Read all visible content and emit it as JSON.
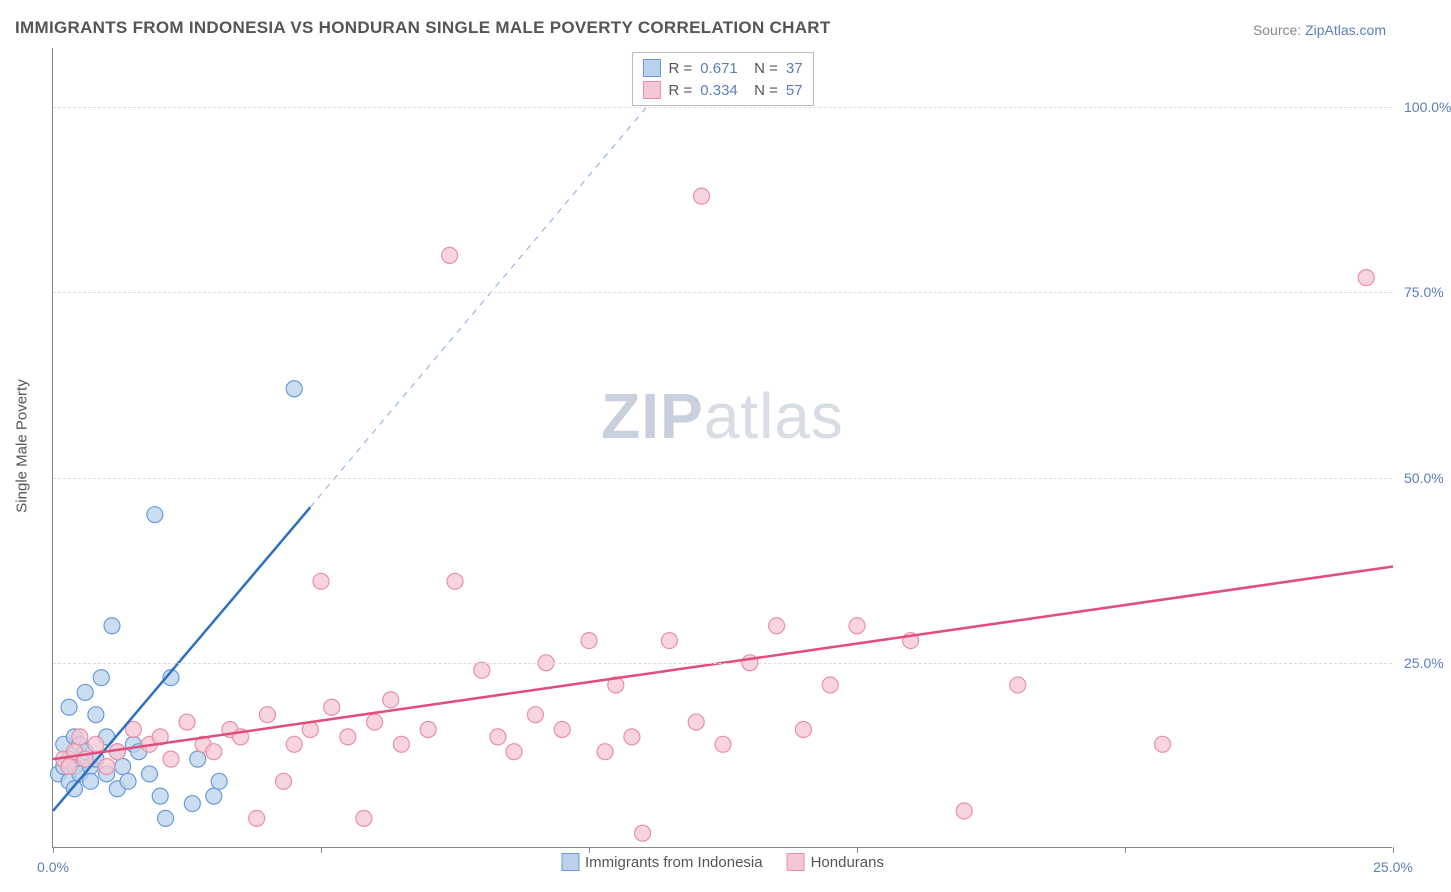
{
  "title": "IMMIGRANTS FROM INDONESIA VS HONDURAN SINGLE MALE POVERTY CORRELATION CHART",
  "source_label": "Source:",
  "source_name": "ZipAtlas.com",
  "watermark_a": "ZIP",
  "watermark_b": "atlas",
  "chart": {
    "type": "scatter",
    "ylabel": "Single Male Poverty",
    "xlim": [
      0,
      25
    ],
    "ylim": [
      0,
      108
    ],
    "xtick_positions": [
      0,
      5,
      10,
      15,
      20,
      25
    ],
    "xtick_labels": [
      "0.0%",
      "",
      "",
      "",
      "",
      "25.0%"
    ],
    "ytick_positions": [
      25,
      50,
      75,
      100
    ],
    "ytick_labels": [
      "25.0%",
      "50.0%",
      "75.0%",
      "100.0%"
    ],
    "grid_color": "#dddddd",
    "background_color": "#ffffff",
    "series": [
      {
        "name": "Immigrants from Indonesia",
        "color_fill": "#b9d1ec",
        "color_stroke": "#6a9bd8",
        "line_color": "#2f6fc0",
        "marker_radius": 8,
        "marker_opacity": 0.75,
        "R": "0.671",
        "N": "37",
        "trend_solid": {
          "x1": 0,
          "y1": 5,
          "x2": 4.8,
          "y2": 46
        },
        "trend_dashed": {
          "x1": 4.8,
          "y1": 46,
          "x2": 12.0,
          "y2": 108
        },
        "points": [
          [
            0.1,
            10
          ],
          [
            0.2,
            11
          ],
          [
            0.2,
            14
          ],
          [
            0.3,
            9
          ],
          [
            0.3,
            12
          ],
          [
            0.3,
            19
          ],
          [
            0.4,
            8
          ],
          [
            0.4,
            11
          ],
          [
            0.4,
            15
          ],
          [
            0.5,
            10
          ],
          [
            0.5,
            14
          ],
          [
            0.6,
            21
          ],
          [
            0.6,
            13
          ],
          [
            0.7,
            11
          ],
          [
            0.7,
            9
          ],
          [
            0.8,
            18
          ],
          [
            0.8,
            12
          ],
          [
            0.9,
            23
          ],
          [
            1.0,
            10
          ],
          [
            1.0,
            15
          ],
          [
            1.1,
            30
          ],
          [
            1.2,
            8
          ],
          [
            1.2,
            13
          ],
          [
            1.3,
            11
          ],
          [
            1.4,
            9
          ],
          [
            1.5,
            14
          ],
          [
            1.6,
            13
          ],
          [
            1.8,
            10
          ],
          [
            1.9,
            45
          ],
          [
            2.0,
            7
          ],
          [
            2.1,
            4
          ],
          [
            2.2,
            23
          ],
          [
            2.6,
            6
          ],
          [
            2.7,
            12
          ],
          [
            3.0,
            7
          ],
          [
            3.1,
            9
          ],
          [
            4.5,
            62
          ]
        ]
      },
      {
        "name": "Hondurans",
        "color_fill": "#f5c6d3",
        "color_stroke": "#e98fab",
        "line_color": "#e24d7c",
        "marker_radius": 8,
        "marker_opacity": 0.75,
        "R": "0.334",
        "N": "57",
        "trend_solid": {
          "x1": 0,
          "y1": 12,
          "x2": 25,
          "y2": 38
        },
        "points": [
          [
            0.2,
            12
          ],
          [
            0.3,
            11
          ],
          [
            0.4,
            13
          ],
          [
            0.5,
            15
          ],
          [
            0.6,
            12
          ],
          [
            0.8,
            14
          ],
          [
            1.0,
            11
          ],
          [
            1.2,
            13
          ],
          [
            1.5,
            16
          ],
          [
            1.8,
            14
          ],
          [
            2.0,
            15
          ],
          [
            2.2,
            12
          ],
          [
            2.5,
            17
          ],
          [
            2.8,
            14
          ],
          [
            3.0,
            13
          ],
          [
            3.3,
            16
          ],
          [
            3.5,
            15
          ],
          [
            3.8,
            4
          ],
          [
            4.0,
            18
          ],
          [
            4.3,
            9
          ],
          [
            4.5,
            14
          ],
          [
            4.8,
            16
          ],
          [
            5.0,
            36
          ],
          [
            5.2,
            19
          ],
          [
            5.5,
            15
          ],
          [
            5.8,
            4
          ],
          [
            6.0,
            17
          ],
          [
            6.3,
            20
          ],
          [
            6.5,
            14
          ],
          [
            7.0,
            16
          ],
          [
            7.4,
            80
          ],
          [
            7.5,
            36
          ],
          [
            8.0,
            24
          ],
          [
            8.3,
            15
          ],
          [
            8.6,
            13
          ],
          [
            9.0,
            18
          ],
          [
            9.2,
            25
          ],
          [
            9.5,
            16
          ],
          [
            10.0,
            28
          ],
          [
            10.3,
            13
          ],
          [
            10.5,
            22
          ],
          [
            10.8,
            15
          ],
          [
            11.0,
            2
          ],
          [
            11.5,
            28
          ],
          [
            12.0,
            17
          ],
          [
            12.1,
            88
          ],
          [
            12.5,
            14
          ],
          [
            13.0,
            25
          ],
          [
            13.5,
            30
          ],
          [
            14.0,
            16
          ],
          [
            14.5,
            22
          ],
          [
            15.0,
            30
          ],
          [
            16.0,
            28
          ],
          [
            17.0,
            5
          ],
          [
            18.0,
            22
          ],
          [
            20.7,
            14
          ],
          [
            24.5,
            77
          ]
        ]
      }
    ],
    "bottom_legend": [
      {
        "label": "Immigrants from Indonesia",
        "fill": "#b9d1ec",
        "stroke": "#6a9bd8"
      },
      {
        "label": "Hondurans",
        "fill": "#f5c6d3",
        "stroke": "#e98fab"
      }
    ]
  }
}
